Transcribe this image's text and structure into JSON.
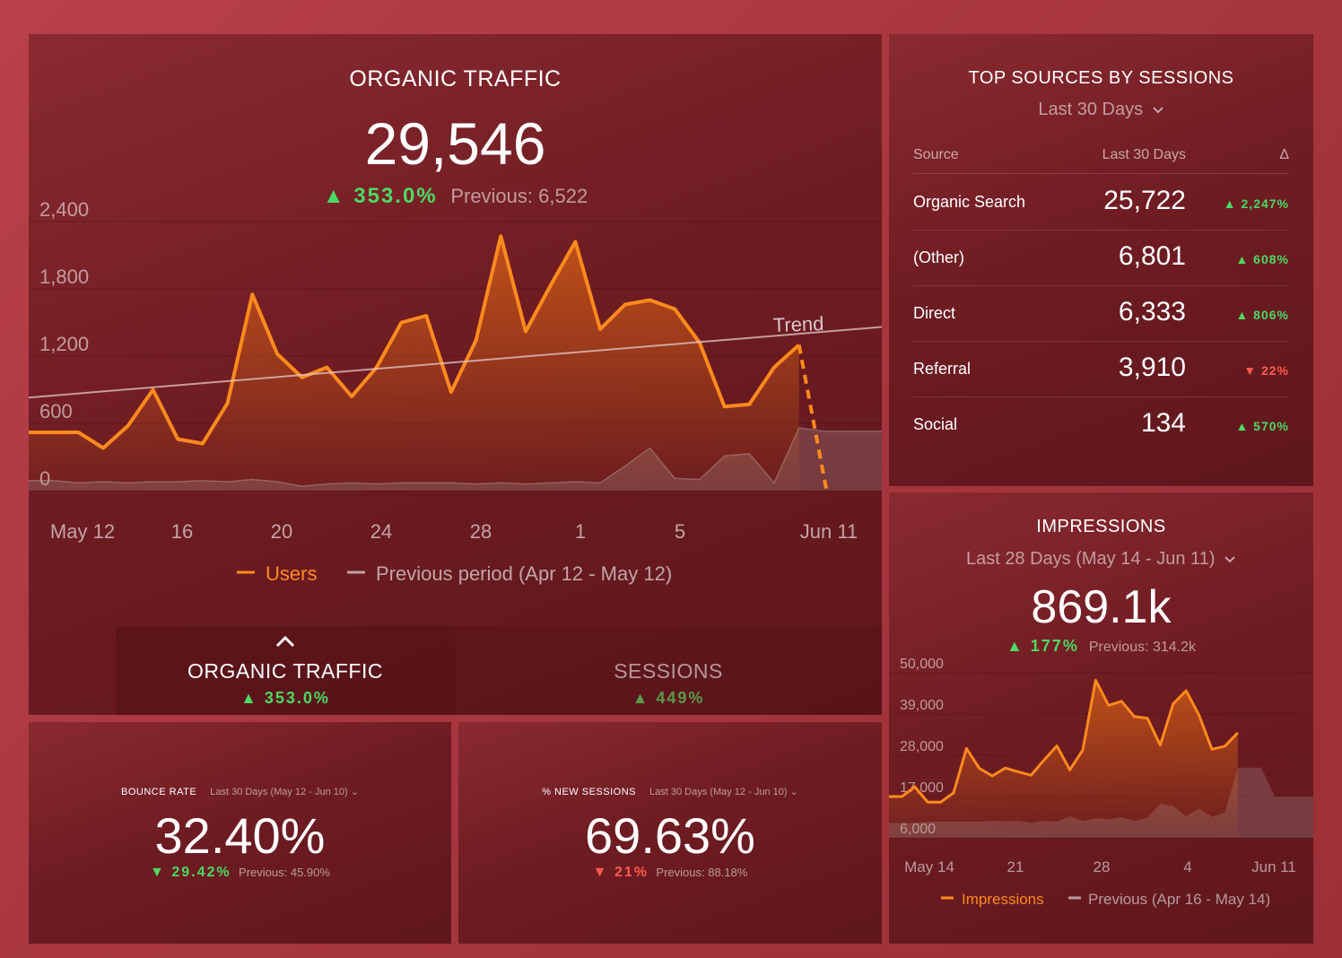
{
  "organic": {
    "title": "ORGANIC TRAFFIC",
    "value": "29,546",
    "delta": "▲ 353.0%",
    "previous": "Previous: 6,522",
    "y_ticks": [
      "2,400",
      "1,800",
      "1,200",
      "600",
      "0"
    ],
    "x_ticks": [
      "May 12",
      "16",
      "20",
      "24",
      "28",
      "1",
      "5",
      "Jun 11"
    ],
    "trend_label": "Trend",
    "legend_current": "Users",
    "legend_previous": "Previous period (Apr 12 - May 12)",
    "tabs": [
      {
        "label": "ORGANIC TRAFFIC",
        "delta": "▲ 353.0%"
      },
      {
        "label": "SESSIONS",
        "delta": "▲ 449%"
      }
    ],
    "chevron": "^"
  },
  "sources": {
    "title": "TOP SOURCES BY SESSIONS",
    "range": "Last 30 Days",
    "col_source": "Source",
    "col_value": "Last 30 Days",
    "col_delta": "Δ",
    "rows": [
      {
        "name": "Organic Search",
        "value": "25,722",
        "delta": "▲ 2,247%",
        "dir": "up"
      },
      {
        "name": "(Other)",
        "value": "6,801",
        "delta": "▲ 608%",
        "dir": "up"
      },
      {
        "name": "Direct",
        "value": "6,333",
        "delta": "▲ 806%",
        "dir": "up"
      },
      {
        "name": "Referral",
        "value": "3,910",
        "delta": "▼ 22%",
        "dir": "down"
      },
      {
        "name": "Social",
        "value": "134",
        "delta": "▲ 570%",
        "dir": "up"
      }
    ]
  },
  "impressions": {
    "title": "IMPRESSIONS",
    "range": "Last 28 Days (May 14 - Jun 11)",
    "value": "869.1k",
    "delta": "▲ 177%",
    "previous": "Previous: 314.2k",
    "y_ticks": [
      "50,000",
      "39,000",
      "28,000",
      "17,000",
      "6,000"
    ],
    "x_ticks": [
      "May 14",
      "21",
      "28",
      "4",
      "Jun 11"
    ],
    "legend_current": "Impressions",
    "legend_previous": "Previous (Apr 16 - May 14)"
  },
  "bounce": {
    "title": "BOUNCE RATE",
    "range": "Last 30 Days (May 12 - Jun 10)",
    "value": "32.40%",
    "delta": "▼ 29.42%",
    "previous": "Previous: 45.90%"
  },
  "newsessions": {
    "title": "% NEW SESSIONS",
    "range": "Last 30 Days (May 12 - Jun 10)",
    "value": "69.63%",
    "delta": "▼ 21%",
    "previous": "Previous: 88.18%"
  },
  "colors": {
    "current": "#ff8a1e",
    "previous": "#9a8a8a",
    "positive": "#4cd964",
    "negative": "#ff5a50"
  },
  "chart_data": [
    {
      "type": "line",
      "title": "ORGANIC TRAFFIC",
      "ylim": [
        0,
        2400
      ],
      "series": [
        {
          "name": "Users",
          "values": [
            520,
            520,
            520,
            380,
            580,
            900,
            460,
            420,
            780,
            1750,
            1220,
            1010,
            1100,
            840,
            1100,
            1500,
            1560,
            880,
            1340,
            2270,
            1420,
            1830,
            2220,
            1440,
            1660,
            1700,
            1620,
            1320,
            750,
            770,
            1100,
            1300,
            0
          ]
        },
        {
          "name": "Previous period (Apr 12 - May 12)",
          "values": [
            90,
            90,
            70,
            80,
            70,
            80,
            80,
            90,
            80,
            100,
            80,
            40,
            60,
            70,
            60,
            70,
            70,
            70,
            60,
            70,
            60,
            70,
            80,
            70,
            220,
            380,
            110,
            100,
            310,
            330,
            70,
            560,
            530
          ]
        },
        {
          "name": "Trend",
          "values": [
            830,
            1460
          ]
        }
      ]
    },
    {
      "type": "line",
      "title": "IMPRESSIONS",
      "ylim": [
        6000,
        50000
      ],
      "series": [
        {
          "name": "Impressions",
          "values": [
            17000,
            17000,
            19600,
            15500,
            15500,
            18000,
            29800,
            24500,
            22500,
            24600,
            23600,
            22700,
            26700,
            30500,
            24100,
            29400,
            48000,
            41300,
            42400,
            38300,
            37900,
            30700,
            41700,
            45200,
            38700,
            29600,
            30400,
            34000
          ]
        },
        {
          "name": "Previous (Apr 16 - May 14)",
          "values": [
            10000,
            10000,
            10000,
            10300,
            10300,
            10300,
            10300,
            10300,
            10500,
            10400,
            10500,
            10000,
            10500,
            10300,
            11700,
            10500,
            11200,
            11000,
            11400,
            10500,
            11300,
            15100,
            14500,
            11800,
            13800,
            11600,
            12700,
            24700
          ]
        }
      ]
    }
  ]
}
